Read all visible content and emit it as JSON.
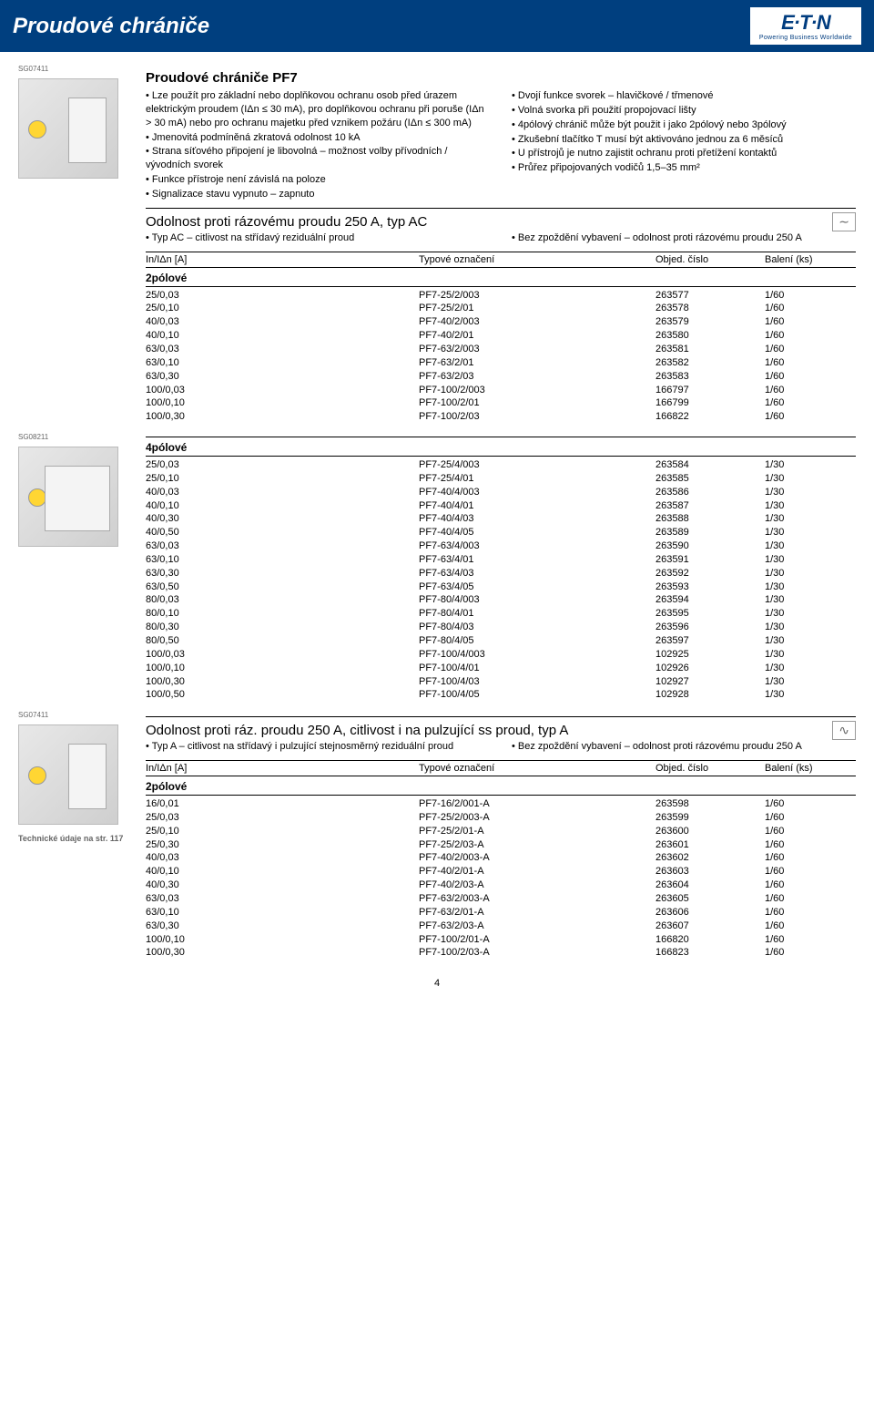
{
  "header": {
    "title": "Proudové chrániče",
    "logo_main": "E·T·N",
    "logo_sub": "Powering Business Worldwide"
  },
  "intro": {
    "title": "Proudové chrániče PF7",
    "left_bullets": [
      "Lze použít pro základní nebo doplňkovou ochranu osob před úrazem elektrickým proudem (IΔn ≤ 30 mA), pro doplňkovou ochranu při poruše (IΔn > 30 mA) nebo pro ochranu majetku před vznikem požáru (IΔn ≤ 300 mA)",
      "Jmenovitá podmíněná zkratová odolnost 10 kA",
      "Strana síťového připojení je libovolná – možnost volby přívodních / vývodních svorek",
      "Funkce přístroje není závislá na poloze",
      "Signalizace stavu vypnuto – zapnuto"
    ],
    "right_bullets": [
      "Dvojí funkce svorek – hlavičkové / třmenové",
      "Volná svorka při použití propojovací lišty",
      "4pólový chránič může být použit i jako 2pólový nebo 3pólový",
      "Zkušební tlačítko T musí být aktivováno jednou za 6 měsíců",
      "U přístrojů je nutno zajistit ochranu proti přetížení kontaktů",
      "Průřez připojovaných vodičů 1,5–35 mm²"
    ]
  },
  "section1": {
    "title": "Odolnost proti rázovému proudu 250 A, typ AC",
    "icon": "∼",
    "left_bullets": [
      "Typ AC – citlivost na střídavý reziduální proud"
    ],
    "right_bullets": [
      "Bez zpoždění vybavení – odolnost proti rázovému proudu 250 A"
    ]
  },
  "table_header": {
    "c1": "In/IΔn [A]",
    "c2": "Typové označení",
    "c3": "Objed. číslo",
    "c4": "Balení (ks)"
  },
  "group1": {
    "label": "SG07411",
    "subhead": "2pólové",
    "rows": [
      [
        "25/0,03",
        "PF7-25/2/003",
        "263577",
        "1/60"
      ],
      [
        "25/0,10",
        "PF7-25/2/01",
        "263578",
        "1/60"
      ],
      [
        "40/0,03",
        "PF7-40/2/003",
        "263579",
        "1/60"
      ],
      [
        "40/0,10",
        "PF7-40/2/01",
        "263580",
        "1/60"
      ],
      [
        "63/0,03",
        "PF7-63/2/003",
        "263581",
        "1/60"
      ],
      [
        "63/0,10",
        "PF7-63/2/01",
        "263582",
        "1/60"
      ],
      [
        "63/0,30",
        "PF7-63/2/03",
        "263583",
        "1/60"
      ],
      [
        "100/0,03",
        "PF7-100/2/003",
        "166797",
        "1/60"
      ],
      [
        "100/0,10",
        "PF7-100/2/01",
        "166799",
        "1/60"
      ],
      [
        "100/0,30",
        "PF7-100/2/03",
        "166822",
        "1/60"
      ]
    ]
  },
  "group2": {
    "label": "SG08211",
    "subhead": "4pólové",
    "rows": [
      [
        "25/0,03",
        "PF7-25/4/003",
        "263584",
        "1/30"
      ],
      [
        "25/0,10",
        "PF7-25/4/01",
        "263585",
        "1/30"
      ],
      [
        "40/0,03",
        "PF7-40/4/003",
        "263586",
        "1/30"
      ],
      [
        "40/0,10",
        "PF7-40/4/01",
        "263587",
        "1/30"
      ],
      [
        "40/0,30",
        "PF7-40/4/03",
        "263588",
        "1/30"
      ],
      [
        "40/0,50",
        "PF7-40/4/05",
        "263589",
        "1/30"
      ],
      [
        "63/0,03",
        "PF7-63/4/003",
        "263590",
        "1/30"
      ],
      [
        "63/0,10",
        "PF7-63/4/01",
        "263591",
        "1/30"
      ],
      [
        "63/0,30",
        "PF7-63/4/03",
        "263592",
        "1/30"
      ],
      [
        "63/0,50",
        "PF7-63/4/05",
        "263593",
        "1/30"
      ],
      [
        "80/0,03",
        "PF7-80/4/003",
        "263594",
        "1/30"
      ],
      [
        "80/0,10",
        "PF7-80/4/01",
        "263595",
        "1/30"
      ],
      [
        "80/0,30",
        "PF7-80/4/03",
        "263596",
        "1/30"
      ],
      [
        "80/0,50",
        "PF7-80/4/05",
        "263597",
        "1/30"
      ],
      [
        "100/0,03",
        "PF7-100/4/003",
        "102925",
        "1/30"
      ],
      [
        "100/0,10",
        "PF7-100/4/01",
        "102926",
        "1/30"
      ],
      [
        "100/0,30",
        "PF7-100/4/03",
        "102927",
        "1/30"
      ],
      [
        "100/0,50",
        "PF7-100/4/05",
        "102928",
        "1/30"
      ]
    ]
  },
  "section2": {
    "title": "Odolnost proti ráz. proudu 250 A, citlivost i na pulzující ss proud, typ A",
    "icon": "∿",
    "left_bullets": [
      "Typ A – citlivost na střídavý i pulzující stejnosměrný reziduální proud"
    ],
    "right_bullets": [
      "Bez zpoždění vybavení – odolnost proti rázovému proudu 250 A"
    ]
  },
  "group3": {
    "label": "SG07411",
    "subhead": "2pólové",
    "rows": [
      [
        "16/0,01",
        "PF7-16/2/001-A",
        "263598",
        "1/60"
      ],
      [
        "25/0,03",
        "PF7-25/2/003-A",
        "263599",
        "1/60"
      ],
      [
        "25/0,10",
        "PF7-25/2/01-A",
        "263600",
        "1/60"
      ],
      [
        "25/0,30",
        "PF7-25/2/03-A",
        "263601",
        "1/60"
      ],
      [
        "40/0,03",
        "PF7-40/2/003-A",
        "263602",
        "1/60"
      ],
      [
        "40/0,10",
        "PF7-40/2/01-A",
        "263603",
        "1/60"
      ],
      [
        "40/0,30",
        "PF7-40/2/03-A",
        "263604",
        "1/60"
      ],
      [
        "63/0,03",
        "PF7-63/2/003-A",
        "263605",
        "1/60"
      ],
      [
        "63/0,10",
        "PF7-63/2/01-A",
        "263606",
        "1/60"
      ],
      [
        "63/0,30",
        "PF7-63/2/03-A",
        "263607",
        "1/60"
      ],
      [
        "100/0,10",
        "PF7-100/2/01-A",
        "166820",
        "1/60"
      ],
      [
        "100/0,30",
        "PF7-100/2/03-A",
        "166823",
        "1/60"
      ]
    ]
  },
  "tech_note": "Technické údaje na str. 117",
  "page_num": "4"
}
